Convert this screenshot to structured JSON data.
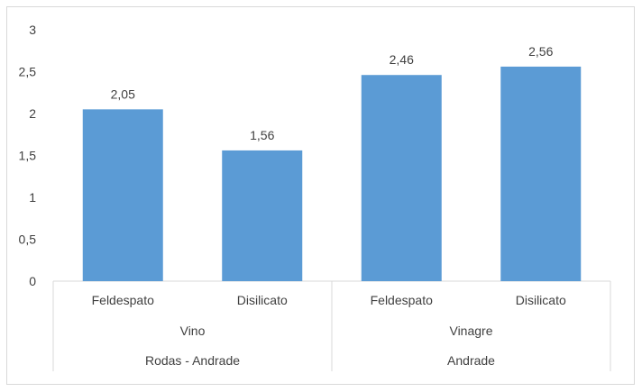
{
  "chart_data": {
    "type": "bar",
    "ylim": [
      0,
      3
    ],
    "yticks": [
      "0",
      "0,5",
      "1",
      "1,5",
      "2",
      "2,5",
      "3"
    ],
    "ytick_values": [
      0,
      0.5,
      1,
      1.5,
      2,
      2.5,
      3
    ],
    "categories": [
      "Feldespato",
      "Disilicato",
      "Feldespato",
      "Disilicato"
    ],
    "values": [
      2.05,
      1.56,
      2.46,
      2.56
    ],
    "data_labels": [
      "2,05",
      "1,56",
      "2,46",
      "2,56"
    ],
    "groups_level1": [
      {
        "label": "Vino",
        "span": [
          0,
          1
        ]
      },
      {
        "label": "Vinagre",
        "span": [
          2,
          3
        ]
      }
    ],
    "groups_level2": [
      {
        "label": "Rodas - Andrade",
        "span": [
          0,
          1
        ]
      },
      {
        "label": "Andrade",
        "span": [
          2,
          3
        ]
      }
    ],
    "bar_color": "#5b9bd5",
    "grid": false,
    "legend": "none"
  }
}
